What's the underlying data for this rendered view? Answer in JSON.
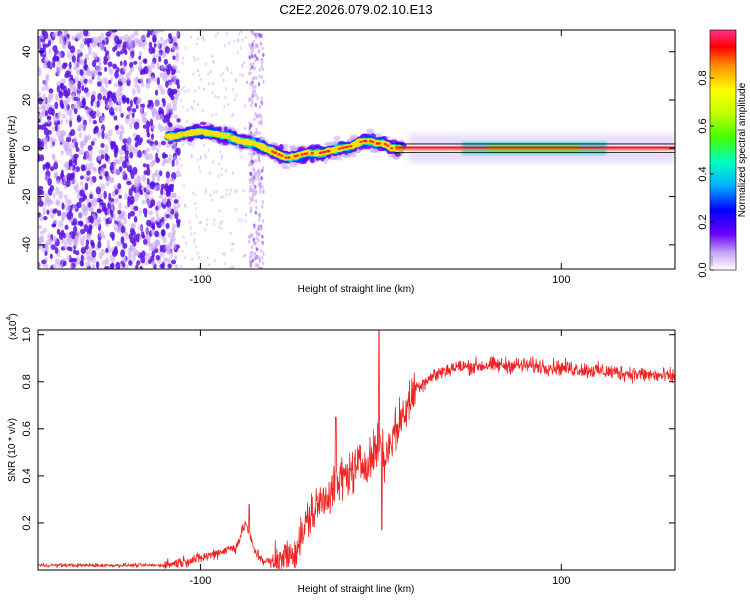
{
  "title": "C2E2.2026.079.02.10.E13",
  "chart_data": [
    {
      "type": "heatmap",
      "name": "spectrogram",
      "xlabel": "Height of straight line (km)",
      "ylabel": "Frequency (Hz)",
      "xlim": [
        -190,
        163
      ],
      "ylim": [
        -50,
        49
      ],
      "xticks": [
        -100,
        100
      ],
      "xtick_labels": [
        "-100",
        "100"
      ],
      "yticks": [
        40,
        20,
        0,
        -20,
        -40
      ],
      "ytick_labels": [
        "40",
        "20",
        "0",
        "-20",
        "-40"
      ],
      "ridge": {
        "x": [
          -115,
          -108,
          -100,
          -92,
          -85,
          -78,
          -70,
          -64,
          -58,
          -52,
          -46,
          -40,
          -34,
          -28,
          -22,
          -16,
          -10,
          -6,
          -2,
          2,
          6,
          12,
          40,
          80,
          120,
          163
        ],
        "y": [
          5,
          6,
          7,
          6,
          5,
          3,
          2,
          0,
          -2,
          -4,
          -3,
          -2,
          -2,
          -1,
          0,
          1,
          3,
          3,
          2,
          2,
          0,
          0,
          0,
          0,
          0,
          0
        ]
      },
      "colorbar": {
        "label": "Normalized spectral amplitude",
        "range": [
          0,
          1
        ],
        "ticks": [
          0.0,
          0.2,
          0.4,
          0.6,
          0.8
        ],
        "tick_labels": [
          "0.0",
          "0.2",
          "0.4",
          "0.6",
          "0.8"
        ]
      }
    },
    {
      "type": "line",
      "name": "snr",
      "xlabel": "Height of straight line (km)",
      "ylabel": "SNR (10 * v/v)",
      "y_scale_label": "(x10",
      "y_scale_exp": "4",
      "xlim": [
        -190,
        163
      ],
      "ylim": [
        0,
        1.02
      ],
      "xticks": [
        -100,
        100
      ],
      "xtick_labels": [
        "-100",
        "100"
      ],
      "yticks": [
        0.2,
        0.4,
        0.6,
        0.8,
        1.0
      ],
      "ytick_labels": [
        "0.2",
        "0.4",
        "0.6",
        "0.8",
        "1.0"
      ],
      "color": "#ee2222",
      "trend": {
        "x": [
          -190,
          -120,
          -100,
          -80,
          -75,
          -70,
          -65,
          -60,
          -50,
          -45,
          -40,
          -30,
          -20,
          -10,
          -5,
          0,
          2,
          5,
          10,
          15,
          20,
          30,
          40,
          60,
          80,
          100,
          130,
          163
        ],
        "y": [
          0.02,
          0.02,
          0.05,
          0.1,
          0.2,
          0.08,
          0.04,
          0.03,
          0.06,
          0.12,
          0.22,
          0.32,
          0.4,
          0.45,
          0.48,
          0.55,
          0.45,
          0.55,
          0.62,
          0.7,
          0.78,
          0.83,
          0.86,
          0.87,
          0.87,
          0.86,
          0.84,
          0.82
        ]
      },
      "spikes": [
        {
          "x": -73,
          "y": 0.28
        },
        {
          "x": -25,
          "y": 0.65
        },
        {
          "x": -1,
          "y": 1.02
        },
        {
          "x": 0.5,
          "y": 0.17
        }
      ]
    }
  ],
  "colors": {
    "line": "#ee2222",
    "purple_dark": "#5a10e0",
    "purple_light": "#c9a8f5"
  }
}
